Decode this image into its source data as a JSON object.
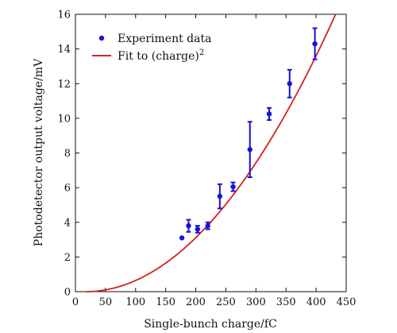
{
  "chart_data": {
    "type": "scatter",
    "xlabel": "Single-bunch charge/fC",
    "ylabel": "Photodetector output voltage/mV",
    "xlim": [
      0,
      450
    ],
    "ylim": [
      0,
      16
    ],
    "xticks": [
      0,
      50,
      100,
      150,
      200,
      250,
      300,
      350,
      400,
      450
    ],
    "yticks": [
      0,
      2,
      4,
      6,
      8,
      10,
      12,
      14,
      16
    ],
    "grid": false,
    "legend_position": "top-left",
    "series": [
      {
        "name": "Experiment data",
        "kind": "points_with_error_bars",
        "color": "#1414d2",
        "points": [
          {
            "x": 177,
            "y": 3.1,
            "err": 0.0
          },
          {
            "x": 188,
            "y": 3.8,
            "err": 0.35
          },
          {
            "x": 203,
            "y": 3.6,
            "err": 0.2
          },
          {
            "x": 220,
            "y": 3.8,
            "err": 0.2
          },
          {
            "x": 240,
            "y": 5.5,
            "err": 0.7
          },
          {
            "x": 262,
            "y": 6.05,
            "err": 0.25
          },
          {
            "x": 290,
            "y": 8.2,
            "err": 1.6
          },
          {
            "x": 322,
            "y": 10.25,
            "err": 0.35
          },
          {
            "x": 356,
            "y": 12.0,
            "err": 0.8
          },
          {
            "x": 398,
            "y": 14.3,
            "err": 0.9
          }
        ]
      },
      {
        "name": "Fit to (charge)",
        "superscript": "2",
        "kind": "line",
        "color": "#d42020",
        "equation_coefficient": 9.25e-05,
        "equation_offset": 16.5
      }
    ]
  }
}
